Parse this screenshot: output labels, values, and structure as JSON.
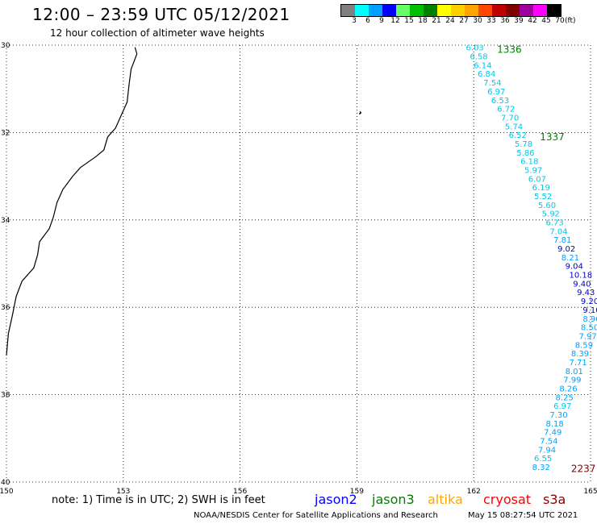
{
  "title": "12:00 – 23:59 UTC 05/12/2021",
  "subtitle": "12 hour collection of altimeter wave heights",
  "legend": {
    "labels": [
      "3",
      "6",
      "9",
      "12",
      "15",
      "18",
      "21",
      "24",
      "27",
      "30",
      "33",
      "36",
      "39",
      "42",
      "45",
      "70"
    ],
    "unit": "(ft)",
    "colors": [
      "#808080",
      "#00ffff",
      "#00a0ff",
      "#0000ff",
      "#66ff66",
      "#00c000",
      "#008000",
      "#ffff00",
      "#ffd000",
      "#ffa500",
      "#ff4500",
      "#c00000",
      "#800000",
      "#a000a0",
      "#ff00ff",
      "#000000"
    ]
  },
  "axes": {
    "lon_min": 150,
    "lon_max": 165,
    "lat_min": -40,
    "lat_max": -30,
    "x_ticks": [
      "150",
      "153",
      "156",
      "159",
      "162",
      "165"
    ],
    "x_tick_values": [
      150,
      153,
      156,
      159,
      162,
      165
    ],
    "y_ticks": [
      "30",
      "32",
      "34",
      "36",
      "38",
      "40"
    ],
    "y_tick_values": [
      -30,
      -32,
      -34,
      -36,
      -38,
      -40
    ]
  },
  "track_labels": [
    {
      "text": "1336",
      "color": "#008000",
      "lon": 162.6,
      "lat": -30.1
    },
    {
      "text": "1337",
      "color": "#008000",
      "lon": 163.7,
      "lat": -32.1
    },
    {
      "text": "2237",
      "color": "#800000",
      "lon": 164.5,
      "lat": -39.7
    }
  ],
  "observations": [
    {
      "v": "6.03",
      "lon": 161.8,
      "lat": -30.05,
      "c": "#00c8e8"
    },
    {
      "v": "6.58",
      "lon": 161.9,
      "lat": -30.25,
      "c": "#00c8e8"
    },
    {
      "v": "6.14",
      "lon": 162.0,
      "lat": -30.45,
      "c": "#00c8e8"
    },
    {
      "v": "6.84",
      "lon": 162.1,
      "lat": -30.65,
      "c": "#00c8e8"
    },
    {
      "v": "7.54",
      "lon": 162.25,
      "lat": -30.85,
      "c": "#00c8e8"
    },
    {
      "v": "6.97",
      "lon": 162.35,
      "lat": -31.05,
      "c": "#00c8e8"
    },
    {
      "v": "6.53",
      "lon": 162.45,
      "lat": -31.25,
      "c": "#00c8e8"
    },
    {
      "v": "6.72",
      "lon": 162.6,
      "lat": -31.45,
      "c": "#00c8e8"
    },
    {
      "v": "7.70",
      "lon": 162.7,
      "lat": -31.65,
      "c": "#00c8e8"
    },
    {
      "v": "5.74",
      "lon": 162.8,
      "lat": -31.85,
      "c": "#00c8e8"
    },
    {
      "v": "6.52",
      "lon": 162.9,
      "lat": -32.05,
      "c": "#00c8e8"
    },
    {
      "v": "5.78",
      "lon": 163.05,
      "lat": -32.25,
      "c": "#00c8e8"
    },
    {
      "v": "5.86",
      "lon": 163.1,
      "lat": -32.45,
      "c": "#00c8e8"
    },
    {
      "v": "6.18",
      "lon": 163.2,
      "lat": -32.65,
      "c": "#00c8e8"
    },
    {
      "v": "5.97",
      "lon": 163.3,
      "lat": -32.85,
      "c": "#00c8e8"
    },
    {
      "v": "6.07",
      "lon": 163.4,
      "lat": -33.05,
      "c": "#00c8e8"
    },
    {
      "v": "6.19",
      "lon": 163.5,
      "lat": -33.25,
      "c": "#00c8e8"
    },
    {
      "v": "5.52",
      "lon": 163.55,
      "lat": -33.45,
      "c": "#00c8e8"
    },
    {
      "v": "5.60",
      "lon": 163.65,
      "lat": -33.65,
      "c": "#00c8e8"
    },
    {
      "v": "5.92",
      "lon": 163.75,
      "lat": -33.85,
      "c": "#00c8e8"
    },
    {
      "v": "6.73",
      "lon": 163.85,
      "lat": -34.05,
      "c": "#00c8e8"
    },
    {
      "v": "7.04",
      "lon": 163.95,
      "lat": -34.25,
      "c": "#00c8e8"
    },
    {
      "v": "7.81",
      "lon": 164.05,
      "lat": -34.45,
      "c": "#00a0ff"
    },
    {
      "v": "9.02",
      "lon": 164.15,
      "lat": -34.65,
      "c": "#0000cc"
    },
    {
      "v": "8.21",
      "lon": 164.25,
      "lat": -34.85,
      "c": "#00a0ff"
    },
    {
      "v": "9.04",
      "lon": 164.35,
      "lat": -35.05,
      "c": "#0000cc"
    },
    {
      "v": "10.18",
      "lon": 164.45,
      "lat": -35.25,
      "c": "#0000cc"
    },
    {
      "v": "9.40",
      "lon": 164.55,
      "lat": -35.45,
      "c": "#0000cc"
    },
    {
      "v": "9.43",
      "lon": 164.65,
      "lat": -35.65,
      "c": "#0000cc"
    },
    {
      "v": "9.20",
      "lon": 164.75,
      "lat": -35.85,
      "c": "#0000cc"
    },
    {
      "v": "9.10",
      "lon": 164.8,
      "lat": -36.05,
      "c": "#0000cc"
    },
    {
      "v": "8.90",
      "lon": 164.8,
      "lat": -36.25,
      "c": "#00a0ff"
    },
    {
      "v": "8.50",
      "lon": 164.75,
      "lat": -36.45,
      "c": "#00a0ff"
    },
    {
      "v": "7.97",
      "lon": 164.7,
      "lat": -36.65,
      "c": "#00a0ff"
    },
    {
      "v": "8.59",
      "lon": 164.6,
      "lat": -36.85,
      "c": "#00a0ff"
    },
    {
      "v": "8.39",
      "lon": 164.5,
      "lat": -37.05,
      "c": "#00a0ff"
    },
    {
      "v": "7.71",
      "lon": 164.45,
      "lat": -37.25,
      "c": "#00a0ff"
    },
    {
      "v": "8.01",
      "lon": 164.35,
      "lat": -37.45,
      "c": "#00a0ff"
    },
    {
      "v": "7.99",
      "lon": 164.3,
      "lat": -37.65,
      "c": "#00a0ff"
    },
    {
      "v": "8.26",
      "lon": 164.2,
      "lat": -37.85,
      "c": "#00a0ff"
    },
    {
      "v": "8.25",
      "lon": 164.1,
      "lat": -38.05,
      "c": "#00a0ff"
    },
    {
      "v": "6.97",
      "lon": 164.05,
      "lat": -38.25,
      "c": "#00c8e8"
    },
    {
      "v": "7.30",
      "lon": 163.95,
      "lat": -38.45,
      "c": "#00a0ff"
    },
    {
      "v": "8.18",
      "lon": 163.85,
      "lat": -38.65,
      "c": "#00a0ff"
    },
    {
      "v": "7.49",
      "lon": 163.8,
      "lat": -38.85,
      "c": "#00a0ff"
    },
    {
      "v": "7.54",
      "lon": 163.7,
      "lat": -39.05,
      "c": "#00a0ff"
    },
    {
      "v": "7.94",
      "lon": 163.65,
      "lat": -39.25,
      "c": "#00a0ff"
    },
    {
      "v": "6.55",
      "lon": 163.55,
      "lat": -39.45,
      "c": "#00c8e8"
    },
    {
      "v": "8.32",
      "lon": 163.5,
      "lat": -39.65,
      "c": "#00a0ff"
    }
  ],
  "coastline": [
    [
      153.3,
      -30.05
    ],
    [
      153.35,
      -30.2
    ],
    [
      153.2,
      -30.55
    ],
    [
      153.15,
      -30.9
    ],
    [
      153.1,
      -31.3
    ],
    [
      152.95,
      -31.6
    ],
    [
      152.8,
      -31.9
    ],
    [
      152.6,
      -32.1
    ],
    [
      152.5,
      -32.4
    ],
    [
      152.3,
      -32.55
    ],
    [
      151.9,
      -32.8
    ],
    [
      151.7,
      -33.0
    ],
    [
      151.45,
      -33.3
    ],
    [
      151.3,
      -33.6
    ],
    [
      151.2,
      -33.95
    ],
    [
      151.1,
      -34.2
    ],
    [
      150.85,
      -34.5
    ],
    [
      150.8,
      -34.8
    ],
    [
      150.7,
      -35.1
    ],
    [
      150.4,
      -35.4
    ],
    [
      150.25,
      -35.75
    ],
    [
      150.15,
      -36.2
    ],
    [
      150.05,
      -36.6
    ],
    [
      150.0,
      -37.1
    ]
  ],
  "islands": [
    [
      159.08,
      -31.52
    ],
    [
      159.1,
      -31.55
    ],
    [
      159.06,
      -31.58
    ]
  ],
  "note": "note:  1) Time is in UTC;  2) SWH is in feet",
  "satellites": [
    {
      "name": "jason2",
      "color": "#0000ff"
    },
    {
      "name": "jason3",
      "color": "#008000"
    },
    {
      "name": "altika",
      "color": "#ffa500"
    },
    {
      "name": "cryosat",
      "color": "#ff0000"
    },
    {
      "name": "s3a",
      "color": "#8b0000"
    }
  ],
  "credit": "NOAA/NESDIS Center for Satellite Applications and Research",
  "timestamp": "May 15 08:27:54 UTC 2021"
}
